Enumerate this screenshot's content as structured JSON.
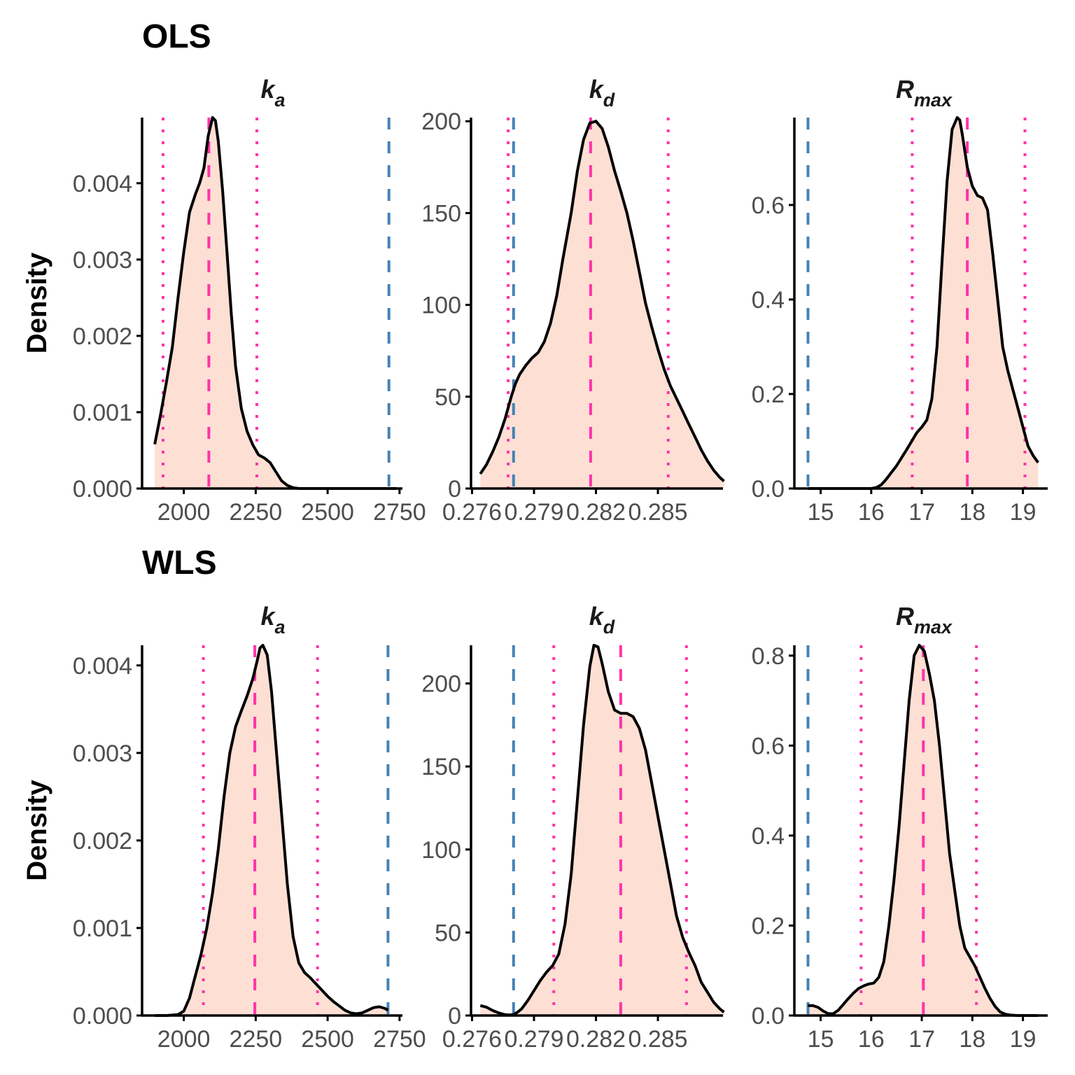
{
  "chart_data": [
    {
      "type": "area",
      "group": "OLS",
      "panel": "ka",
      "title": {
        "main": "k",
        "sub": "a"
      },
      "ylabel": "Density",
      "xlim": [
        1855,
        2760
      ],
      "ylim": [
        0,
        0.00486
      ],
      "xticks": [
        2000,
        2250,
        2500,
        2750
      ],
      "xtick_labels": [
        "2000",
        "2250",
        "2500",
        "2750"
      ],
      "yticks": [
        0,
        0.001,
        0.002,
        0.003,
        0.004
      ],
      "ytick_labels": [
        "0.000",
        "0.001",
        "0.002",
        "0.003",
        "0.004"
      ],
      "density": {
        "x": [
          1899,
          1920,
          1940,
          1960,
          1980,
          2000,
          2020,
          2040,
          2055,
          2070,
          2085,
          2100,
          2110,
          2120,
          2135,
          2150,
          2165,
          2180,
          2200,
          2220,
          2240,
          2260,
          2280,
          2300,
          2320,
          2340,
          2360,
          2380,
          2400,
          2450,
          2500,
          2600,
          2700,
          2740
        ],
        "y": [
          0.00058,
          0.00098,
          0.0014,
          0.00185,
          0.0025,
          0.0031,
          0.00362,
          0.00385,
          0.004,
          0.0042,
          0.00462,
          0.00486,
          0.00482,
          0.00455,
          0.0039,
          0.0031,
          0.0023,
          0.0016,
          0.00105,
          0.00075,
          0.00057,
          0.00044,
          0.0004,
          0.00034,
          0.00022,
          0.0001,
          4e-05,
          1e-05,
          0.0,
          0.0,
          0.0,
          0.0,
          0.0,
          0.0
        ]
      },
      "fill_x_range": [
        1899,
        2740
      ],
      "vlines": [
        {
          "kind": "ci-lower",
          "x": 1928,
          "style": "dotted",
          "color": "#ff33aa"
        },
        {
          "kind": "estimate",
          "x": 2087,
          "style": "dashed",
          "color": "#ff33aa"
        },
        {
          "kind": "ci-upper",
          "x": 2254,
          "style": "dotted",
          "color": "#ff33aa"
        },
        {
          "kind": "reference",
          "x": 2713,
          "style": "dashed",
          "color": "#4682b4"
        }
      ]
    },
    {
      "type": "area",
      "group": "OLS",
      "panel": "kd",
      "title": {
        "main": "k",
        "sub": "d"
      },
      "ylabel": "",
      "xlim": [
        0.27595,
        0.28815
      ],
      "ylim": [
        0,
        202
      ],
      "xticks": [
        0.276,
        0.279,
        0.282,
        0.285
      ],
      "xtick_labels": [
        "0.276",
        "0.279",
        "0.282",
        "0.285"
      ],
      "yticks": [
        0,
        50,
        100,
        150,
        200
      ],
      "ytick_labels": [
        "0",
        "50",
        "100",
        "150",
        "200"
      ],
      "density": {
        "x": [
          0.2764,
          0.2767,
          0.277,
          0.2773,
          0.2776,
          0.2779,
          0.2781,
          0.2783,
          0.2786,
          0.2789,
          0.2792,
          0.2795,
          0.2798,
          0.2801,
          0.2804,
          0.2808,
          0.2811,
          0.2814,
          0.2817,
          0.282,
          0.2823,
          0.2826,
          0.2829,
          0.2832,
          0.2835,
          0.2838,
          0.2841,
          0.2844,
          0.2847,
          0.285,
          0.2853,
          0.2856,
          0.2859,
          0.2862,
          0.2865,
          0.2868,
          0.2871,
          0.2874,
          0.2877,
          0.288,
          0.2882
        ],
        "y": [
          8,
          13,
          20,
          28,
          38,
          50,
          57,
          62,
          67,
          71,
          74,
          80,
          90,
          105,
          125,
          150,
          173,
          190,
          199,
          200,
          196,
          186,
          173,
          162,
          150,
          135,
          118,
          101,
          88,
          76,
          65,
          56,
          49,
          42,
          35,
          28,
          21,
          15,
          10,
          6,
          4
        ]
      },
      "fill_x_range": [
        0.2764,
        0.2882
      ],
      "vlines": [
        {
          "kind": "ci-lower",
          "x": 0.27775,
          "style": "dotted",
          "color": "#ff33aa"
        },
        {
          "kind": "reference",
          "x": 0.27801,
          "style": "dashed",
          "color": "#4682b4"
        },
        {
          "kind": "estimate",
          "x": 0.28174,
          "style": "dashed",
          "color": "#ff33aa"
        },
        {
          "kind": "ci-upper",
          "x": 0.2855,
          "style": "dotted",
          "color": "#ff33aa"
        }
      ]
    },
    {
      "type": "area",
      "group": "OLS",
      "panel": "Rmax",
      "title": {
        "main": "R",
        "sub": "max"
      },
      "ylabel": "",
      "xlim": [
        14.48,
        19.49
      ],
      "ylim": [
        0,
        0.785
      ],
      "xticks": [
        15,
        16,
        17,
        18,
        19
      ],
      "xtick_labels": [
        "15",
        "16",
        "17",
        "18",
        "19"
      ],
      "yticks": [
        0,
        0.2,
        0.4,
        0.6
      ],
      "ytick_labels": [
        "0.0",
        "0.2",
        "0.4",
        "0.6"
      ],
      "density": {
        "x": [
          14.75,
          15.0,
          15.5,
          16.0,
          16.1,
          16.2,
          16.3,
          16.4,
          16.5,
          16.6,
          16.7,
          16.8,
          16.9,
          17.0,
          17.1,
          17.2,
          17.3,
          17.4,
          17.5,
          17.6,
          17.7,
          17.75,
          17.8,
          17.9,
          18.0,
          18.1,
          18.2,
          18.3,
          18.4,
          18.5,
          18.6,
          18.7,
          18.8,
          18.9,
          19.0,
          19.1,
          19.2,
          19.3
        ],
        "y": [
          0.0,
          0.0,
          0.0,
          0.0,
          0.002,
          0.008,
          0.02,
          0.034,
          0.048,
          0.065,
          0.082,
          0.1,
          0.118,
          0.13,
          0.145,
          0.19,
          0.3,
          0.48,
          0.65,
          0.76,
          0.785,
          0.78,
          0.75,
          0.68,
          0.64,
          0.62,
          0.615,
          0.59,
          0.5,
          0.4,
          0.3,
          0.25,
          0.21,
          0.17,
          0.13,
          0.09,
          0.07,
          0.055
        ]
      },
      "fill_x_range": [
        16.0,
        19.33
      ],
      "vlines": [
        {
          "kind": "reference",
          "x": 14.75,
          "style": "dashed",
          "color": "#4682b4"
        },
        {
          "kind": "ci-lower",
          "x": 16.81,
          "style": "dotted",
          "color": "#ff33aa"
        },
        {
          "kind": "estimate",
          "x": 17.9,
          "style": "dashed",
          "color": "#ff33aa"
        },
        {
          "kind": "ci-upper",
          "x": 19.04,
          "style": "dotted",
          "color": "#ff33aa"
        }
      ]
    },
    {
      "type": "area",
      "group": "WLS",
      "panel": "ka",
      "title": {
        "main": "k",
        "sub": "a"
      },
      "ylabel": "Density",
      "xlim": [
        1855,
        2760
      ],
      "ylim": [
        0,
        0.00423
      ],
      "xticks": [
        2000,
        2250,
        2500,
        2750
      ],
      "xtick_labels": [
        "2000",
        "2250",
        "2500",
        "2750"
      ],
      "yticks": [
        0,
        0.001,
        0.002,
        0.003,
        0.004
      ],
      "ytick_labels": [
        "0.000",
        "0.001",
        "0.002",
        "0.003",
        "0.004"
      ],
      "density": {
        "x": [
          1900,
          1940,
          1980,
          2000,
          2020,
          2040,
          2060,
          2080,
          2100,
          2120,
          2140,
          2160,
          2180,
          2200,
          2220,
          2240,
          2255,
          2265,
          2275,
          2290,
          2305,
          2320,
          2340,
          2360,
          2380,
          2400,
          2420,
          2440,
          2460,
          2480,
          2500,
          2520,
          2540,
          2560,
          2580,
          2600,
          2620,
          2640,
          2660,
          2680,
          2700,
          2710
        ],
        "y": [
          0.0,
          0.0,
          1e-05,
          5e-05,
          0.0002,
          0.00045,
          0.0007,
          0.001,
          0.0014,
          0.0019,
          0.0025,
          0.003,
          0.0033,
          0.00348,
          0.00365,
          0.00385,
          0.00405,
          0.0042,
          0.00423,
          0.00412,
          0.0037,
          0.0031,
          0.0023,
          0.0015,
          0.0009,
          0.0006,
          0.00049,
          0.00043,
          0.00036,
          0.00029,
          0.00022,
          0.00016,
          0.00011,
          6e-05,
          3e-05,
          2e-05,
          3e-05,
          6e-05,
          9e-05,
          0.0001,
          8e-05,
          6e-05
        ]
      },
      "fill_x_range": [
        1900,
        2710
      ],
      "vlines": [
        {
          "kind": "ci-lower",
          "x": 2068,
          "style": "dotted",
          "color": "#ff33aa"
        },
        {
          "kind": "estimate",
          "x": 2247,
          "style": "dashed",
          "color": "#ff33aa"
        },
        {
          "kind": "ci-upper",
          "x": 2465,
          "style": "dotted",
          "color": "#ff33aa"
        },
        {
          "kind": "reference",
          "x": 2710,
          "style": "dashed",
          "color": "#4682b4"
        }
      ]
    },
    {
      "type": "area",
      "group": "WLS",
      "panel": "kd",
      "title": {
        "main": "k",
        "sub": "d"
      },
      "ylabel": "",
      "xlim": [
        0.27595,
        0.28815
      ],
      "ylim": [
        0,
        223
      ],
      "xticks": [
        0.276,
        0.279,
        0.282,
        0.285
      ],
      "xtick_labels": [
        "0.276",
        "0.279",
        "0.282",
        "0.285"
      ],
      "yticks": [
        0,
        50,
        100,
        150,
        200
      ],
      "ytick_labels": [
        "0",
        "50",
        "100",
        "150",
        "200"
      ],
      "density": {
        "x": [
          0.2764,
          0.2767,
          0.277,
          0.2773,
          0.2776,
          0.2778,
          0.278,
          0.2782,
          0.2784,
          0.2787,
          0.279,
          0.2793,
          0.2796,
          0.2799,
          0.2802,
          0.2805,
          0.2808,
          0.2811,
          0.2814,
          0.2817,
          0.2819,
          0.2821,
          0.2823,
          0.2826,
          0.2829,
          0.2832,
          0.2835,
          0.2838,
          0.2841,
          0.2844,
          0.2847,
          0.285,
          0.2853,
          0.2856,
          0.2859,
          0.2862,
          0.2865,
          0.2868,
          0.2871,
          0.2874,
          0.2877,
          0.288,
          0.2882
        ],
        "y": [
          6,
          5,
          3,
          1.5,
          0.5,
          0.3,
          0.5,
          2,
          4,
          9,
          15,
          21,
          26,
          30,
          37,
          55,
          85,
          130,
          175,
          210,
          223,
          222,
          212,
          195,
          184,
          182,
          182,
          180,
          173,
          160,
          140,
          120,
          100,
          80,
          60,
          47,
          38,
          30,
          20,
          14,
          8,
          4,
          2
        ]
      },
      "fill_x_range": [
        0.2764,
        0.2882
      ],
      "vlines": [
        {
          "kind": "reference",
          "x": 0.27801,
          "style": "dashed",
          "color": "#4682b4"
        },
        {
          "kind": "ci-lower",
          "x": 0.27996,
          "style": "dotted",
          "color": "#ff33aa"
        },
        {
          "kind": "estimate",
          "x": 0.2832,
          "style": "dashed",
          "color": "#ff33aa"
        },
        {
          "kind": "ci-upper",
          "x": 0.28638,
          "style": "dotted",
          "color": "#ff33aa"
        }
      ]
    },
    {
      "type": "area",
      "group": "WLS",
      "panel": "Rmax",
      "title": {
        "main": "R",
        "sub": "max"
      },
      "ylabel": "",
      "xlim": [
        14.48,
        19.49
      ],
      "ylim": [
        0,
        0.823
      ],
      "xticks": [
        15,
        16,
        17,
        18,
        19
      ],
      "xtick_labels": [
        "15",
        "16",
        "17",
        "18",
        "19"
      ],
      "yticks": [
        0,
        0.2,
        0.4,
        0.6,
        0.8
      ],
      "ytick_labels": [
        "0.0",
        "0.2",
        "0.4",
        "0.6",
        "0.8"
      ],
      "density": {
        "x": [
          14.75,
          14.85,
          14.95,
          15.05,
          15.15,
          15.25,
          15.35,
          15.45,
          15.55,
          15.65,
          15.75,
          15.85,
          15.95,
          16.05,
          16.15,
          16.25,
          16.35,
          16.45,
          16.55,
          16.65,
          16.75,
          16.85,
          16.95,
          17.05,
          17.15,
          17.25,
          17.35,
          17.45,
          17.55,
          17.65,
          17.75,
          17.85,
          17.95,
          18.05,
          18.15,
          18.25,
          18.35,
          18.45,
          18.55,
          18.65,
          18.75,
          18.9,
          19.1,
          19.3
        ],
        "y": [
          0.022,
          0.022,
          0.018,
          0.01,
          0.004,
          0.004,
          0.012,
          0.025,
          0.038,
          0.05,
          0.06,
          0.066,
          0.07,
          0.072,
          0.085,
          0.12,
          0.2,
          0.3,
          0.42,
          0.56,
          0.7,
          0.8,
          0.823,
          0.81,
          0.76,
          0.7,
          0.6,
          0.48,
          0.36,
          0.28,
          0.2,
          0.15,
          0.13,
          0.11,
          0.085,
          0.06,
          0.038,
          0.02,
          0.008,
          0.003,
          0.001,
          0.0,
          0.0,
          0.0
        ]
      },
      "fill_x_range": [
        14.75,
        18.75
      ],
      "vlines": [
        {
          "kind": "reference",
          "x": 14.75,
          "style": "dashed",
          "color": "#4682b4"
        },
        {
          "kind": "ci-lower",
          "x": 15.8,
          "style": "dotted",
          "color": "#ff33aa"
        },
        {
          "kind": "estimate",
          "x": 17.03,
          "style": "dashed",
          "color": "#ff33aa"
        },
        {
          "kind": "ci-upper",
          "x": 18.08,
          "style": "dotted",
          "color": "#ff33aa"
        }
      ]
    }
  ],
  "row_titles": [
    "OLS",
    "WLS"
  ],
  "colors": {
    "fill": "#fddfd4",
    "curve": "#000000",
    "estimate_line": "#ff33aa",
    "reference_line": "#4682b4"
  }
}
